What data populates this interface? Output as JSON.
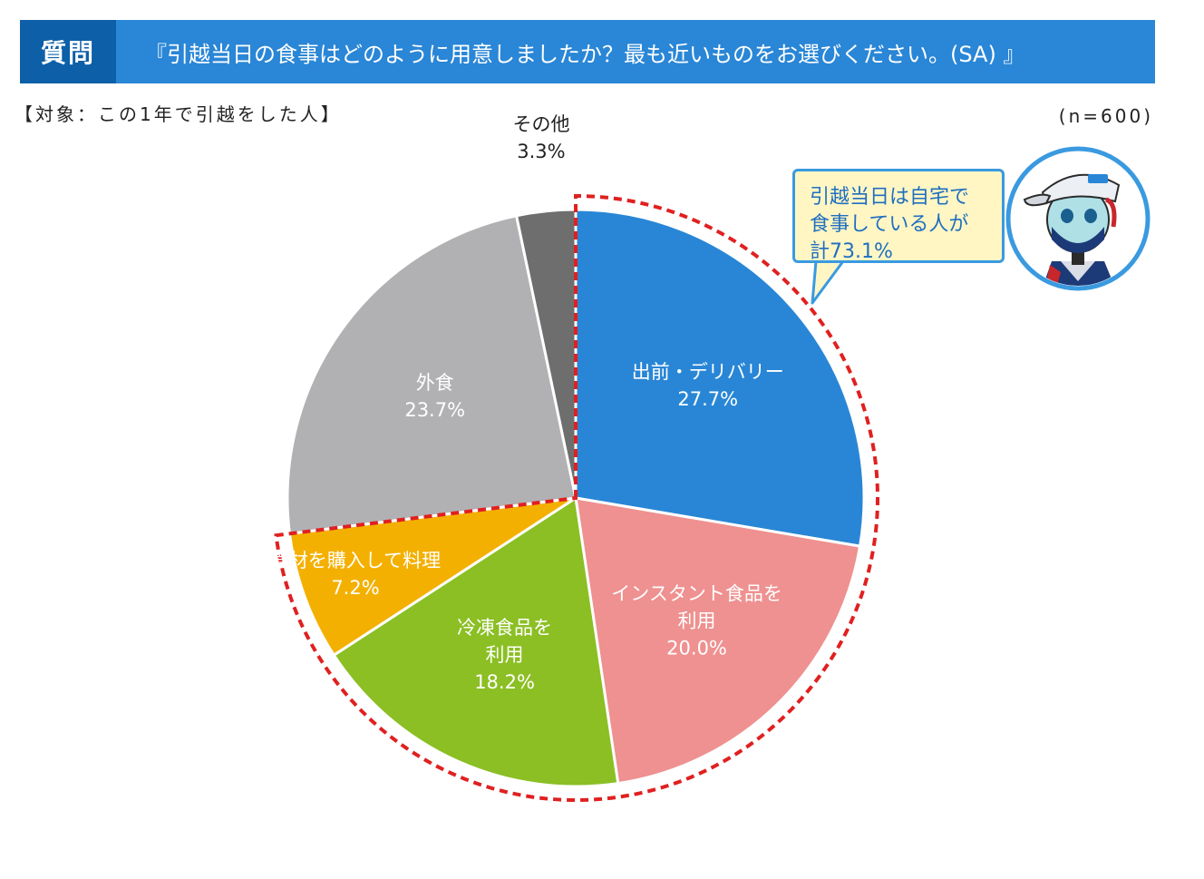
{
  "header": {
    "tag": "質問",
    "question": "『引越当日の食事はどのように用意しましたか？最も近いものをお選びください。(SA) 』"
  },
  "target": "【対象：この1年で引越をした人】",
  "sample_size": "(n=600)",
  "callout": {
    "lines": [
      "引越当日は自宅で",
      "食事している人が",
      "計73.1%"
    ]
  },
  "colors": {
    "header_bg": "#2a86d6",
    "header_tag_bg": "#0d5fa8",
    "highlight_dash": "#e02020"
  },
  "chart_data": {
    "type": "pie",
    "start": "12 o'clock, clockwise",
    "slices": [
      {
        "name": "出前・デリバリー",
        "label_lines": [
          "出前・デリバリー"
        ],
        "value": 27.7,
        "value_label": "27.7%",
        "color": "#2986d6",
        "text_color": "#ffffff",
        "highlighted": true
      },
      {
        "name": "インスタント食品を利用",
        "label_lines": [
          "インスタント食品を",
          "利用"
        ],
        "value": 20.0,
        "value_label": "20.0%",
        "color": "#ee9190",
        "text_color": "#ffffff",
        "highlighted": true
      },
      {
        "name": "冷凍食品を利用",
        "label_lines": [
          "冷凍食品を",
          "利用"
        ],
        "value": 18.2,
        "value_label": "18.2%",
        "color": "#8bbf24",
        "text_color": "#ffffff",
        "highlighted": true
      },
      {
        "name": "食材を購入して料理",
        "label_lines": [
          "食材を購入して料理"
        ],
        "value": 7.2,
        "value_label": "7.2%",
        "color": "#f4b000",
        "text_color": "#ffffff",
        "highlighted": true
      },
      {
        "name": "外食",
        "label_lines": [
          "外食"
        ],
        "value": 23.7,
        "value_label": "23.7%",
        "color": "#b1b1b3",
        "text_color": "#ffffff",
        "highlighted": false
      },
      {
        "name": "その他",
        "label_lines": [
          "その他"
        ],
        "value": 3.3,
        "value_label": "3.3%",
        "color": "#6e6e6f",
        "text_color": "#222222",
        "highlighted": false
      }
    ],
    "highlight_total": "73.1%"
  }
}
